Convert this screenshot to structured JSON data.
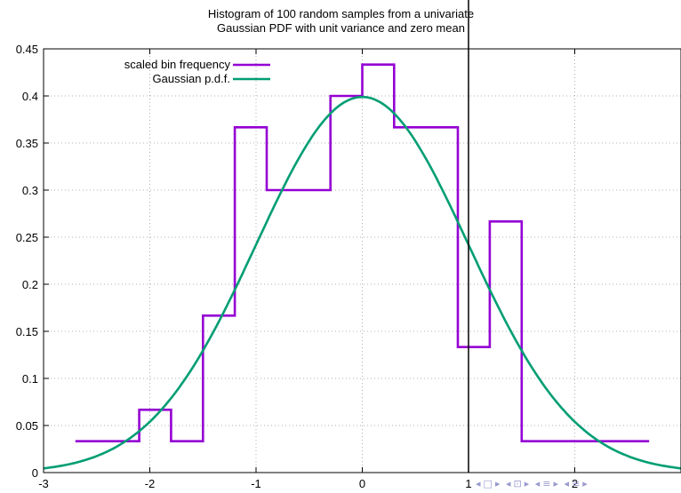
{
  "chart_data": {
    "type": "step+line",
    "title_lines": [
      "Histogram of 100 random samples from a univariate",
      "Gaussian PDF with unit variance and zero mean"
    ],
    "xlim": [
      -3,
      3
    ],
    "ylim": [
      0,
      0.45
    ],
    "x_ticks": [
      -3,
      -2,
      -1,
      0,
      1,
      2
    ],
    "x_tick_labels": [
      "-3",
      "-2",
      "-1",
      "0",
      "1",
      "2"
    ],
    "y_ticks": [
      0,
      0.05,
      0.1,
      0.15,
      0.2,
      0.25,
      0.3,
      0.35,
      0.4,
      0.45
    ],
    "y_tick_labels": [
      "0",
      "0.05",
      "0.1",
      "0.15",
      "0.2",
      "0.25",
      "0.3",
      "0.35",
      "0.4",
      "0.45"
    ],
    "grid": true,
    "legend_position": "top-left",
    "vertical_line_x": 1,
    "series": [
      {
        "name": "scaled bin frequency",
        "kind": "histogram-step",
        "color": "#9400d3",
        "x": [
          -2.7,
          -2.1,
          -2.1,
          -1.8,
          -1.8,
          -1.5,
          -1.5,
          -1.2,
          -1.2,
          -0.9,
          -0.9,
          -0.3,
          -0.3,
          0.0,
          0.0,
          0.3,
          0.3,
          0.9,
          0.9,
          1.2,
          1.2,
          1.5,
          1.5,
          2.7
        ],
        "y": [
          0.0333,
          0.0333,
          0.0667,
          0.0667,
          0.0333,
          0.0333,
          0.1667,
          0.1667,
          0.3667,
          0.3667,
          0.3,
          0.3,
          0.4,
          0.4,
          0.4333,
          0.4333,
          0.3667,
          0.3667,
          0.1333,
          0.1333,
          0.2667,
          0.2667,
          0.0333,
          0.0333
        ]
      },
      {
        "name": "Gaussian p.d.f.",
        "kind": "function",
        "function": "gaussian",
        "mean": 0,
        "variance": 1,
        "color": "#009e73"
      }
    ]
  },
  "nav_icons": [
    "first-icon",
    "prev-section-icon",
    "prev-frame-icon",
    "next-frame-icon",
    "next-section-icon",
    "last-icon"
  ],
  "colors": {
    "axis": "#000000",
    "grid": "#b0b0b0",
    "nav": "#9a9ad0"
  }
}
